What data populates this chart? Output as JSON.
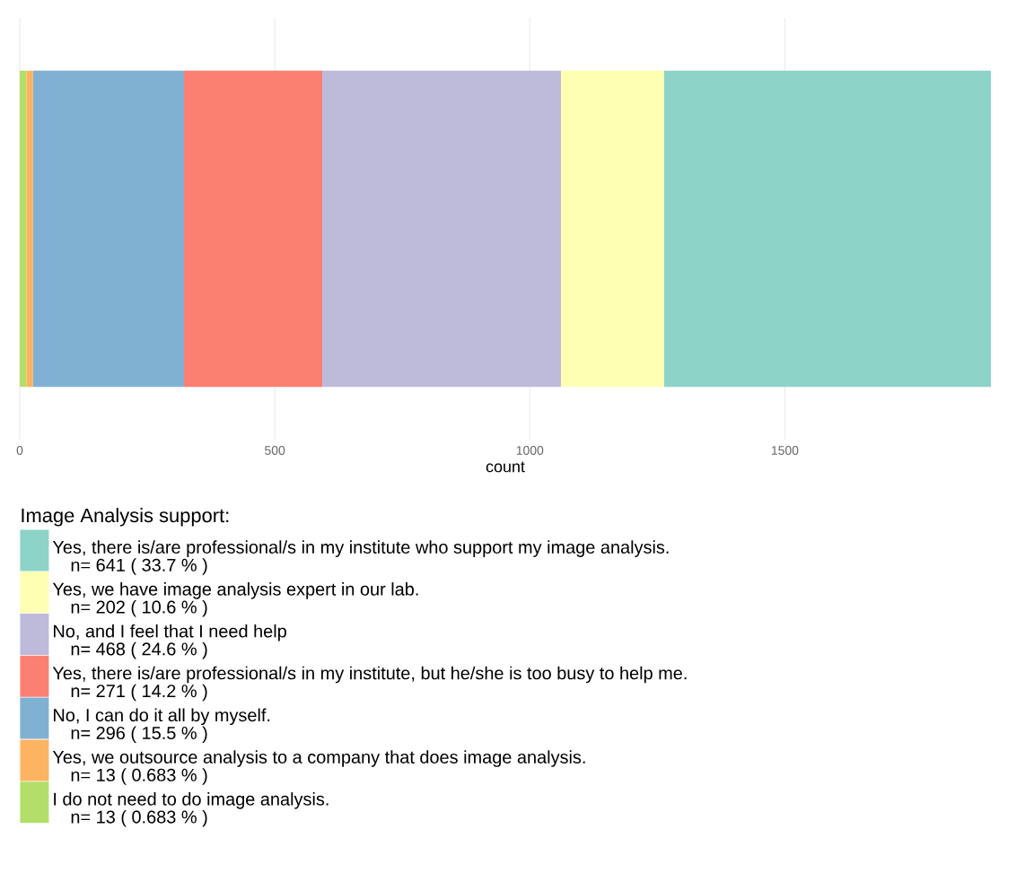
{
  "chart_data": {
    "type": "bar",
    "orientation": "horizontal",
    "stacked": true,
    "xlabel": "count",
    "legend_title": "Image Analysis support:",
    "legend": "bottom",
    "grid": true,
    "tick_labels": "x",
    "categories": [
      null
    ],
    "annotations": [
      "n= 641  ( 33.7 % )",
      "n= 202  ( 10.6 % )",
      "n= 468  ( 24.6 % )",
      "n= 271  ( 14.2 % )",
      "n= 296  ( 15.5 % )",
      "n= 13  ( 0.683 % )",
      "n= 13  ( 0.683 % )"
    ],
    "xlim": [
      0,
      1904
    ],
    "xticks": [
      0,
      500,
      1000,
      1500
    ],
    "series": [
      {
        "name": "I do not need to do image analysis.",
        "color": "#b3de69",
        "values": [
          13
        ]
      },
      {
        "name": "Yes, we outsource analysis to a company that does image analysis.",
        "color": "#fdb462",
        "values": [
          13
        ]
      },
      {
        "name": "No, I can do it all by myself.",
        "color": "#80b1d3",
        "values": [
          296
        ]
      },
      {
        "name": "Yes, there is/are professional/s in my institute, but he/she is too busy to help me.",
        "color": "#fb8072",
        "values": [
          271
        ]
      },
      {
        "name": "No, and I feel that I need help",
        "color": "#bebada",
        "values": [
          468
        ]
      },
      {
        "name": "Yes, we have image analysis expert in our lab.",
        "color": "#ffffb3",
        "values": [
          202
        ]
      },
      {
        "name": "Yes, there is/are professional/s in my institute who support my image analysis.",
        "color": "#8dd3c7",
        "values": [
          641
        ]
      }
    ]
  }
}
